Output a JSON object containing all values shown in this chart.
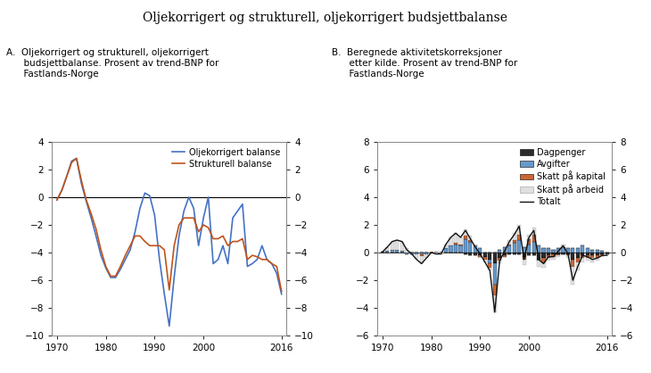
{
  "title": "Oljekorrigert og strukturell, oljekorrigert budsjettbalanse",
  "panel_a_label": "A.  Oljekorrigert og strukturell, oljekorrigert\n      budsjettbalanse. Prosent av trend-BNP for\n      Fastlands-Norge",
  "panel_b_label": "B.  Beregnede aktivitetskorreksjoner\n      etter kilde. Prosent av trend-BNP for\n      Fastlands-Norge",
  "years_a": [
    1970,
    1971,
    1972,
    1973,
    1974,
    1975,
    1976,
    1977,
    1978,
    1979,
    1980,
    1981,
    1982,
    1983,
    1984,
    1985,
    1986,
    1987,
    1988,
    1989,
    1990,
    1991,
    1992,
    1993,
    1994,
    1995,
    1996,
    1997,
    1998,
    1999,
    2000,
    2001,
    2002,
    2003,
    2004,
    2005,
    2006,
    2007,
    2008,
    2009,
    2010,
    2011,
    2012,
    2013,
    2014,
    2015,
    2016
  ],
  "oljekorrigert": [
    -0.2,
    0.5,
    1.5,
    2.6,
    2.8,
    1.0,
    -0.3,
    -1.5,
    -2.8,
    -4.2,
    -5.1,
    -5.8,
    -5.8,
    -5.2,
    -4.5,
    -3.8,
    -2.5,
    -0.8,
    0.3,
    0.1,
    -1.3,
    -4.5,
    -7.0,
    -9.3,
    -5.8,
    -2.8,
    -1.0,
    0.0,
    -0.8,
    -3.5,
    -1.5,
    0.0,
    -4.8,
    -4.5,
    -3.5,
    -4.8,
    -1.5,
    -1.0,
    -0.5,
    -5.0,
    -4.8,
    -4.5,
    -3.5,
    -4.5,
    -4.8,
    -5.5,
    -7.0
  ],
  "strukturell": [
    -0.2,
    0.5,
    1.5,
    2.5,
    2.8,
    1.2,
    -0.2,
    -1.2,
    -2.3,
    -3.8,
    -5.0,
    -5.7,
    -5.7,
    -5.0,
    -4.2,
    -3.5,
    -2.8,
    -2.8,
    -3.2,
    -3.5,
    -3.5,
    -3.5,
    -3.8,
    -6.7,
    -3.5,
    -2.0,
    -1.5,
    -1.5,
    -1.5,
    -2.5,
    -2.0,
    -2.2,
    -3.0,
    -3.0,
    -2.8,
    -3.5,
    -3.2,
    -3.2,
    -3.0,
    -4.5,
    -4.2,
    -4.3,
    -4.5,
    -4.5,
    -4.8,
    -5.0,
    -6.8
  ],
  "years_b": [
    1970,
    1971,
    1972,
    1973,
    1974,
    1975,
    1976,
    1977,
    1978,
    1979,
    1980,
    1981,
    1982,
    1983,
    1984,
    1985,
    1986,
    1987,
    1988,
    1989,
    1990,
    1991,
    1992,
    1993,
    1994,
    1995,
    1996,
    1997,
    1998,
    1999,
    2000,
    2001,
    2002,
    2003,
    2004,
    2005,
    2006,
    2007,
    2008,
    2009,
    2010,
    2011,
    2012,
    2013,
    2014,
    2015,
    2016
  ],
  "dagpenger": [
    0.0,
    0.0,
    0.0,
    0.0,
    0.0,
    0.0,
    0.0,
    0.0,
    0.0,
    0.0,
    0.0,
    0.0,
    0.0,
    0.0,
    0.0,
    0.0,
    0.0,
    -0.1,
    -0.2,
    -0.2,
    -0.2,
    -0.3,
    -0.5,
    -0.8,
    -0.4,
    -0.2,
    -0.1,
    -0.1,
    -0.1,
    -0.3,
    -0.2,
    -0.2,
    -0.5,
    -0.4,
    -0.2,
    -0.1,
    -0.1,
    -0.1,
    -0.1,
    -0.5,
    -0.4,
    -0.2,
    -0.2,
    -0.2,
    -0.2,
    -0.1,
    -0.1
  ],
  "avgifter": [
    0.05,
    0.1,
    0.2,
    0.2,
    0.1,
    -0.1,
    -0.1,
    -0.1,
    -0.15,
    -0.1,
    0.0,
    0.0,
    0.0,
    0.3,
    0.5,
    0.6,
    0.5,
    1.0,
    0.8,
    0.5,
    0.3,
    0.0,
    -0.3,
    -1.5,
    0.2,
    0.4,
    0.5,
    0.7,
    0.9,
    0.4,
    0.6,
    0.8,
    0.5,
    0.3,
    0.3,
    0.2,
    0.3,
    0.4,
    0.3,
    0.3,
    0.3,
    0.5,
    0.3,
    0.2,
    0.2,
    0.1,
    0.0
  ],
  "skatt_kapital": [
    0.0,
    0.0,
    0.0,
    0.0,
    0.0,
    0.0,
    0.0,
    -0.05,
    -0.1,
    0.0,
    0.0,
    0.0,
    0.0,
    0.0,
    0.0,
    0.1,
    0.1,
    0.2,
    0.1,
    0.0,
    -0.1,
    -0.2,
    -0.3,
    -0.8,
    -0.2,
    -0.1,
    0.1,
    0.2,
    0.4,
    -0.2,
    0.4,
    0.5,
    -0.1,
    -0.3,
    -0.2,
    -0.2,
    -0.1,
    0.0,
    -0.1,
    -0.5,
    -0.3,
    -0.2,
    -0.2,
    -0.2,
    -0.2,
    -0.1,
    0.0
  ],
  "skatt_arbeid": [
    0.0,
    0.3,
    0.6,
    0.7,
    0.7,
    0.3,
    0.0,
    -0.3,
    -0.5,
    -0.3,
    0.0,
    -0.1,
    -0.1,
    0.3,
    0.6,
    0.7,
    0.5,
    0.5,
    0.3,
    0.1,
    -0.1,
    -0.2,
    -0.2,
    -1.2,
    -0.2,
    0.0,
    0.3,
    0.5,
    0.7,
    -0.4,
    0.3,
    0.5,
    -0.4,
    -0.4,
    -0.2,
    -0.2,
    -0.1,
    0.2,
    -0.2,
    -1.3,
    -0.6,
    -0.3,
    -0.2,
    -0.3,
    -0.2,
    -0.1,
    -0.1
  ],
  "totalt": [
    0.05,
    0.4,
    0.8,
    0.9,
    0.8,
    0.2,
    -0.1,
    -0.5,
    -0.8,
    -0.4,
    0.0,
    -0.1,
    -0.1,
    0.6,
    1.1,
    1.4,
    1.1,
    1.6,
    1.0,
    0.4,
    -0.1,
    -0.7,
    -1.3,
    -4.3,
    -0.6,
    0.1,
    0.8,
    1.3,
    1.9,
    -0.5,
    1.1,
    1.6,
    -0.5,
    -0.8,
    -0.3,
    -0.3,
    0.1,
    0.5,
    -0.1,
    -2.0,
    -1.0,
    -0.2,
    -0.3,
    -0.5,
    -0.4,
    -0.2,
    -0.2
  ],
  "color_oljekorrigert": "#4472c4",
  "color_strukturell": "#c0531a",
  "color_dagpenger": "#2b2b2b",
  "color_avgifter": "#6699cc",
  "color_skatt_kapital": "#cc6633",
  "color_skatt_arbeid": "#e0e0e0",
  "color_totalt": "#111111",
  "ylim_a": [
    -10,
    4
  ],
  "ylim_b": [
    -6,
    8
  ],
  "yticks_a": [
    -10,
    -8,
    -6,
    -4,
    -2,
    0,
    2,
    4
  ],
  "yticks_b": [
    -6,
    -4,
    -2,
    0,
    2,
    4,
    6,
    8
  ],
  "xticks": [
    1970,
    1980,
    1990,
    2000,
    2016
  ]
}
